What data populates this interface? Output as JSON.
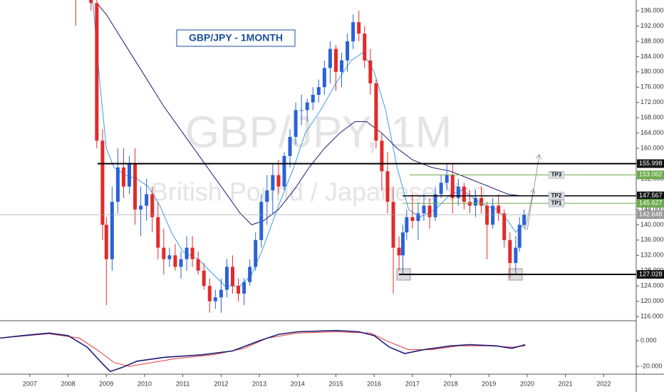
{
  "chart_data": [
    {
      "type": "candlestick",
      "title": "GBP/JPY - 1MONTH",
      "watermark": "GBP/JPY, 1M",
      "watermark_sub": "British Pound / Japanese Yen",
      "up_color": "#2a62d6",
      "down_color": "#e32a2a",
      "xlim": [
        2006.22,
        2022.85
      ],
      "xticks": [
        2007,
        2008,
        2009,
        2010,
        2011,
        2012,
        2013,
        2014,
        2015,
        2016,
        2017,
        2018,
        2019,
        2020,
        2021,
        2022
      ],
      "ylim": [
        114.9,
        198.8
      ],
      "yticks": [
        {
          "value": 116,
          "label": "116.000"
        },
        {
          "value": 120,
          "label": "120.000"
        },
        {
          "value": 124,
          "label": "124.000"
        },
        {
          "value": 128,
          "label": "128.000"
        },
        {
          "value": 132,
          "label": "132.000"
        },
        {
          "value": 136,
          "label": "136.000"
        },
        {
          "value": 140,
          "label": "140.000"
        },
        {
          "value": 144,
          "label": "144.000"
        },
        {
          "value": 148,
          "label": "148.000"
        },
        {
          "value": 152,
          "label": "152.000"
        },
        {
          "value": 156,
          "label": "156.000"
        },
        {
          "value": 160,
          "label": "160.000"
        },
        {
          "value": 164,
          "label": "164.000"
        },
        {
          "value": 168,
          "label": "168.000"
        },
        {
          "value": 172,
          "label": "172.000"
        },
        {
          "value": 176,
          "label": "176.000"
        },
        {
          "value": 180,
          "label": "180.000"
        },
        {
          "value": 184,
          "label": "184.000"
        },
        {
          "value": 188,
          "label": "188.000"
        },
        {
          "value": 192,
          "label": "192.000"
        },
        {
          "value": 196,
          "label": "196.000"
        }
      ],
      "x": [
        2008.2,
        2008.4,
        2008.6,
        2008.75,
        2008.9,
        2009.0,
        2009.15,
        2009.3,
        2009.45,
        2009.6,
        2009.75,
        2009.9,
        2010.05,
        2010.2,
        2010.35,
        2010.5,
        2010.65,
        2010.8,
        2010.95,
        2011.1,
        2011.25,
        2011.4,
        2011.55,
        2011.7,
        2011.85,
        2012.0,
        2012.15,
        2012.3,
        2012.45,
        2012.6,
        2012.75,
        2012.9,
        2013.05,
        2013.2,
        2013.35,
        2013.5,
        2013.65,
        2013.8,
        2013.95,
        2014.1,
        2014.25,
        2014.4,
        2014.55,
        2014.7,
        2014.85,
        2015.0,
        2015.15,
        2015.3,
        2015.45,
        2015.6,
        2015.75,
        2015.9,
        2016.05,
        2016.2,
        2016.35,
        2016.5,
        2016.65,
        2016.75,
        2016.85,
        2017.0,
        2017.15,
        2017.3,
        2017.45,
        2017.6,
        2017.75,
        2017.9,
        2018.05,
        2018.2,
        2018.35,
        2018.5,
        2018.65,
        2018.8,
        2018.95,
        2019.1,
        2019.25,
        2019.4,
        2019.55,
        2019.7,
        2019.8,
        2019.92
      ],
      "open": [
        200,
        202,
        210,
        198,
        162,
        140,
        131,
        146,
        155,
        150,
        156,
        144,
        145,
        148,
        142,
        134,
        131,
        132,
        129,
        131,
        134,
        131,
        128,
        124,
        120,
        121,
        123,
        129,
        124,
        122,
        125,
        129,
        136,
        146,
        149,
        153,
        150,
        158,
        163,
        170,
        170,
        172,
        174,
        176,
        181,
        186,
        180,
        183,
        188,
        193,
        190,
        183,
        177,
        162,
        154,
        146,
        134,
        132,
        138,
        142,
        141,
        143,
        145,
        142,
        148,
        151,
        153,
        147,
        150,
        146,
        145,
        147,
        145,
        140,
        145,
        143,
        136,
        130,
        134,
        140
      ],
      "high": [
        204,
        214,
        212,
        199,
        165,
        142,
        150,
        160,
        160,
        158,
        160,
        150,
        152,
        150,
        146,
        139,
        134,
        135,
        133,
        137,
        137,
        133,
        130,
        126,
        123,
        126,
        131,
        132,
        126,
        126,
        131,
        138,
        148,
        153,
        156,
        157,
        159,
        165,
        172,
        174,
        173,
        176,
        178,
        183,
        188,
        187,
        185,
        190,
        195,
        196,
        192,
        186,
        178,
        164,
        159,
        150,
        137,
        140,
        144,
        148,
        146,
        148,
        147,
        150,
        153,
        156,
        156,
        152,
        151,
        149,
        149,
        150,
        146,
        147,
        148,
        144,
        138,
        137,
        142,
        144
      ],
      "low": [
        192,
        199,
        196,
        160,
        136,
        119,
        128,
        143,
        147,
        148,
        140,
        137,
        141,
        138,
        131,
        127,
        129,
        128,
        126,
        128,
        129,
        127,
        123,
        117,
        118,
        117,
        121,
        122,
        120,
        119,
        124,
        128,
        134,
        140,
        143,
        148,
        149,
        155,
        161,
        166,
        167,
        170,
        172,
        174,
        177,
        175,
        176,
        180,
        186,
        188,
        181,
        174,
        160,
        149,
        143,
        122,
        128,
        127,
        136,
        139,
        136,
        141,
        139,
        141,
        147,
        149,
        143,
        145,
        144,
        143,
        142,
        143,
        131,
        139,
        141,
        134,
        126,
        127,
        133,
        139
      ],
      "close": [
        199,
        210,
        198,
        162,
        140,
        131,
        146,
        155,
        150,
        156,
        144,
        145,
        148,
        142,
        134,
        131,
        132,
        129,
        131,
        134,
        131,
        128,
        124,
        120,
        121,
        123,
        129,
        124,
        122,
        125,
        129,
        136,
        146,
        149,
        153,
        150,
        158,
        163,
        170,
        170,
        172,
        174,
        176,
        181,
        186,
        180,
        183,
        188,
        193,
        190,
        183,
        177,
        162,
        154,
        146,
        134,
        132,
        138,
        142,
        141,
        143,
        145,
        142,
        148,
        151,
        153,
        147,
        150,
        146,
        145,
        147,
        145,
        140,
        145,
        143,
        136,
        130,
        134,
        140,
        142.6
      ],
      "lines": [
        {
          "color": "#3d9be9",
          "x": [
            2008.65,
            2008.85,
            2009.0,
            2009.2,
            2009.5,
            2009.8,
            2010.1,
            2010.4,
            2010.7,
            2011.0,
            2011.4,
            2011.8,
            2012.1,
            2012.5,
            2012.8,
            2013.1,
            2013.5,
            2013.9,
            2014.2,
            2014.6,
            2015.0,
            2015.4,
            2015.7,
            2016.0,
            2016.3,
            2016.6,
            2016.9,
            2017.2,
            2017.6,
            2018.0,
            2018.3,
            2018.6,
            2018.9,
            2019.2,
            2019.5,
            2019.7,
            2019.9
          ],
          "values": [
            198,
            175,
            160,
            155,
            153,
            152,
            150,
            145,
            138,
            133,
            131,
            127,
            124,
            124,
            127,
            134,
            145,
            155,
            164,
            170,
            177,
            183,
            185,
            180,
            170,
            155,
            144,
            142,
            144,
            148,
            149,
            147,
            145,
            144,
            141,
            138,
            140
          ]
        },
        {
          "color": "#1c1c78",
          "x": [
            2008.75,
            2009.0,
            2009.5,
            2010.0,
            2010.5,
            2011.0,
            2011.5,
            2012.0,
            2012.5,
            2012.8,
            2013.1,
            2013.5,
            2013.9,
            2014.3,
            2014.7,
            2015.1,
            2015.5,
            2015.8,
            2016.2,
            2016.6,
            2017.0,
            2017.5,
            2018.0,
            2018.5,
            2019.0,
            2019.5,
            2019.9
          ],
          "values": [
            198,
            195,
            187,
            179,
            171,
            164,
            157,
            150,
            143,
            140,
            141,
            144,
            149,
            155,
            160,
            164,
            167,
            167,
            164,
            160,
            157,
            155,
            154,
            152,
            150,
            148,
            147.5
          ]
        }
      ],
      "levels": [
        {
          "value": 155.998,
          "color": "#000000"
        },
        {
          "value": 153.062,
          "color": "#6aaa4a",
          "label": "TP3"
        },
        {
          "value": 147.567,
          "color": "#000000",
          "label": "TP2"
        },
        {
          "value": 145.627,
          "color": "#6aaa4a",
          "label": "TP1"
        },
        {
          "value": 127.028,
          "color": "#000000"
        },
        {
          "value": 142.648,
          "color": "#9a9a9a"
        }
      ]
    },
    {
      "type": "line",
      "xlim": [
        2006.22,
        2022.85
      ],
      "ylim": [
        -26.1,
        15.6
      ],
      "yticks": [
        {
          "value": 0,
          "label": "0.000"
        },
        {
          "value": -20,
          "label": "-20.000"
        }
      ],
      "series": [
        {
          "color": "#e33a3a",
          "x": [
            2006.2,
            2007.5,
            2008.3,
            2008.8,
            2009.2,
            2009.6,
            2010.0,
            2010.8,
            2011.8,
            2012.6,
            2013.2,
            2014.0,
            2015.0,
            2015.9,
            2016.4,
            2016.9,
            2017.5,
            2018.2,
            2019.0,
            2019.6,
            2019.95
          ],
          "values": [
            2,
            5.5,
            2,
            -8,
            -17,
            -20,
            -18,
            -14,
            -11,
            -6,
            2,
            6,
            7,
            6,
            -1,
            -7,
            -7,
            -4,
            -4,
            -5,
            -4
          ]
        },
        {
          "color": "#1c1c78",
          "x": [
            2006.2,
            2006.8,
            2007.5,
            2008.0,
            2008.5,
            2008.9,
            2009.1,
            2009.4,
            2009.8,
            2010.5,
            2011.5,
            2012.3,
            2013.0,
            2013.5,
            2014.0,
            2015.0,
            2015.6,
            2016.0,
            2016.4,
            2016.8,
            2017.3,
            2018.0,
            2018.5,
            2019.2,
            2019.6,
            2019.95
          ],
          "values": [
            2,
            4,
            6,
            4,
            -5,
            -18,
            -24,
            -21,
            -16,
            -13,
            -11,
            -8,
            0,
            5,
            7,
            8,
            7,
            4,
            -5,
            -10,
            -7,
            -4,
            -3,
            -4,
            -6,
            -3
          ]
        }
      ]
    }
  ]
}
